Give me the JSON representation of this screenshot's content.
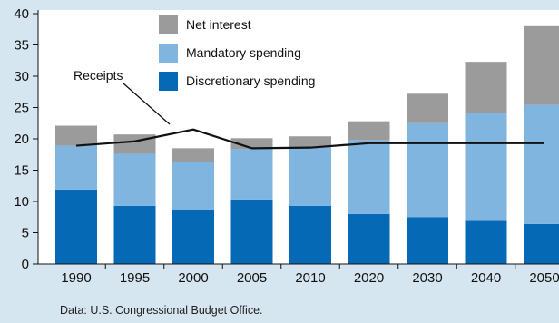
{
  "chart_data": {
    "type": "bar",
    "stacked": true,
    "categories": [
      "1990",
      "1995",
      "2000",
      "2005",
      "2010",
      "2020",
      "2030",
      "2040",
      "2050"
    ],
    "series": [
      {
        "name": "Discretionary spending",
        "color": "#0569b6",
        "values": [
          11.9,
          9.3,
          8.6,
          10.3,
          9.3,
          8.0,
          7.5,
          6.9,
          6.4
        ]
      },
      {
        "name": "Mandatory spending",
        "color": "#7fb5de",
        "values": [
          7.0,
          8.3,
          7.7,
          8.1,
          9.3,
          11.8,
          15.0,
          17.3,
          19.0
        ]
      },
      {
        "name": "Net interest",
        "color": "#9b9b9b",
        "values": [
          3.2,
          3.1,
          2.2,
          1.7,
          1.8,
          3.0,
          4.7,
          8.1,
          12.6
        ]
      }
    ],
    "line": {
      "name": "Receipts",
      "color": "#111111",
      "values": [
        18.9,
        19.6,
        21.5,
        18.5,
        18.6,
        19.3,
        19.3,
        19.3,
        19.3
      ]
    },
    "ylim": [
      0,
      40
    ],
    "yticks": [
      0,
      5,
      10,
      15,
      20,
      25,
      30,
      35,
      40
    ],
    "grid": false,
    "legend_position": "top-center",
    "xlabel": "",
    "ylabel": ""
  },
  "source_note": "Data: U.S. Congressional Budget Office."
}
